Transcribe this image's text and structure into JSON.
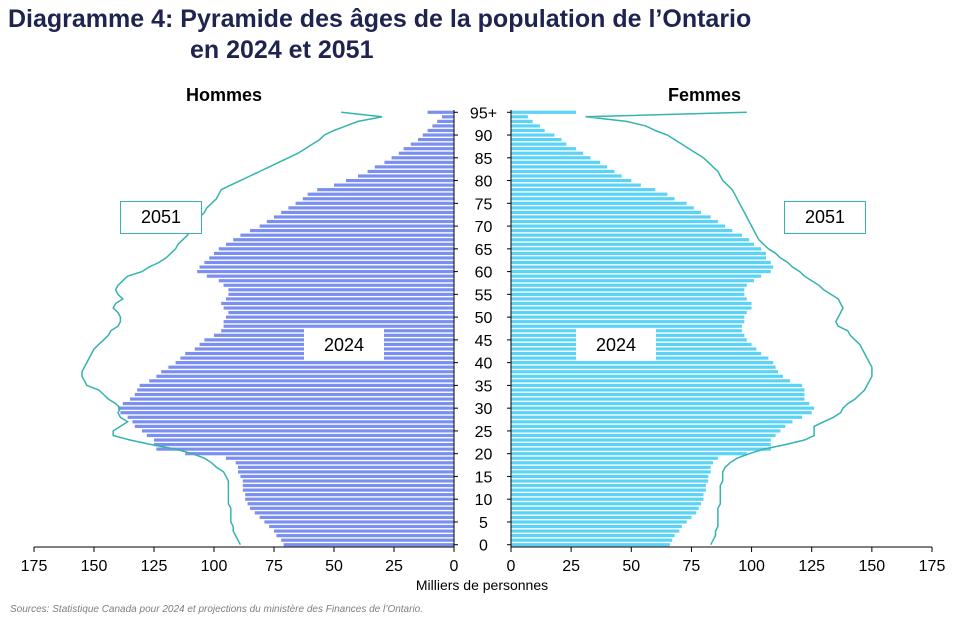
{
  "title": {
    "line1": "Diagramme 4: Pyramide des âges de la population de l’Ontario",
    "line2": "en 2024 et 2051"
  },
  "labels": {
    "men": "Hommes",
    "women": "Femmes",
    "year_2051": "2051",
    "year_2024": "2024",
    "xlabel": "Milliers de personnes",
    "source": "Sources: Statistique Canada pour 2024 et projections du ministère des Finances de l’Ontario."
  },
  "colors": {
    "men_bar": "#7b8ff0",
    "women_bar": "#5bd3f7",
    "line_2051": "#35b3ad",
    "title": "#1f2350"
  },
  "chart_data": {
    "type": "bar",
    "orientation": "horizontal-pyramid",
    "title": "Diagramme 4: Pyramide des âges de la population de l’Ontario en 2024 et 2051",
    "xlabel": "Milliers de personnes",
    "xlim": [
      0,
      175
    ],
    "x_ticks": [
      175,
      150,
      125,
      100,
      75,
      50,
      25,
      0
    ],
    "age_ticks": [
      "0",
      "5",
      "10",
      "15",
      "20",
      "25",
      "30",
      "35",
      "40",
      "45",
      "50",
      "55",
      "60",
      "65",
      "70",
      "75",
      "80",
      "85",
      "90",
      "95+"
    ],
    "ages": [
      0,
      1,
      2,
      3,
      4,
      5,
      6,
      7,
      8,
      9,
      10,
      11,
      12,
      13,
      14,
      15,
      16,
      17,
      18,
      19,
      20,
      21,
      22,
      23,
      24,
      25,
      26,
      27,
      28,
      29,
      30,
      31,
      32,
      33,
      34,
      35,
      36,
      37,
      38,
      39,
      40,
      41,
      42,
      43,
      44,
      45,
      46,
      47,
      48,
      49,
      50,
      51,
      52,
      53,
      54,
      55,
      56,
      57,
      58,
      59,
      60,
      61,
      62,
      63,
      64,
      65,
      66,
      67,
      68,
      69,
      70,
      71,
      72,
      73,
      74,
      75,
      76,
      77,
      78,
      79,
      80,
      81,
      82,
      83,
      84,
      85,
      86,
      87,
      88,
      89,
      90,
      91,
      92,
      93,
      94,
      95
    ],
    "series": [
      {
        "name": "Hommes 2024",
        "values": [
          71,
          72,
          74,
          75,
          77,
          79,
          81,
          83,
          85,
          86,
          87,
          87,
          88,
          88,
          88,
          89,
          90,
          90,
          91,
          95,
          112,
          124,
          125,
          125,
          128,
          130,
          133,
          134,
          136,
          139,
          140,
          138,
          135,
          133,
          132,
          131,
          127,
          124,
          122,
          119,
          116,
          114,
          112,
          108,
          106,
          104,
          100,
          97,
          96,
          96,
          95,
          94,
          96,
          97,
          95,
          94,
          94,
          96,
          98,
          103,
          107,
          106,
          104,
          102,
          100,
          98,
          95,
          92,
          89,
          85,
          81,
          78,
          75,
          72,
          69,
          66,
          63,
          61,
          57,
          50,
          45,
          40,
          36,
          33,
          29,
          26,
          23,
          21,
          18,
          15,
          13,
          11,
          9,
          7,
          5,
          11
        ]
      },
      {
        "name": "Femmes 2024",
        "values": [
          66,
          67,
          68,
          70,
          71,
          73,
          75,
          77,
          78,
          79,
          80,
          80,
          81,
          81,
          82,
          82,
          83,
          83,
          84,
          86,
          98,
          108,
          108,
          108,
          110,
          112,
          114,
          117,
          121,
          125,
          126,
          124,
          122,
          122,
          122,
          121,
          116,
          113,
          111,
          110,
          109,
          107,
          104,
          102,
          100,
          98,
          97,
          96,
          96,
          97,
          97,
          98,
          100,
          100,
          98,
          97,
          97,
          98,
          101,
          104,
          108,
          109,
          108,
          106,
          106,
          104,
          101,
          99,
          96,
          92,
          89,
          86,
          83,
          79,
          76,
          73,
          68,
          65,
          60,
          54,
          50,
          46,
          43,
          40,
          37,
          33,
          30,
          27,
          23,
          21,
          18,
          14,
          12,
          9,
          7,
          27
        ]
      },
      {
        "name": "Hommes 2051",
        "values": [
          89,
          90,
          91,
          92,
          92,
          93,
          93,
          93,
          93,
          94,
          94,
          94,
          94,
          94,
          94,
          95,
          96,
          99,
          101,
          104,
          109,
          116,
          126,
          135,
          142,
          142,
          139,
          136,
          139,
          140,
          139,
          141,
          144,
          146,
          148,
          153,
          154,
          155,
          155,
          154,
          153,
          152,
          151,
          150,
          148,
          146,
          144,
          143,
          140,
          139,
          139,
          140,
          142,
          141,
          138,
          140,
          141,
          140,
          138,
          136,
          130,
          127,
          123,
          120,
          118,
          116,
          115,
          113,
          111,
          110,
          109,
          107,
          106,
          104,
          103,
          101,
          99,
          98,
          97,
          93,
          89,
          85,
          81,
          77,
          73,
          69,
          65,
          62,
          59,
          56,
          54,
          50,
          45,
          40,
          30,
          47
        ]
      },
      {
        "name": "Femmes 2051",
        "values": [
          83,
          84,
          85,
          85,
          86,
          86,
          86,
          86,
          86,
          87,
          87,
          87,
          87,
          87,
          88,
          88,
          88,
          89,
          91,
          94,
          99,
          105,
          114,
          122,
          126,
          126,
          126,
          130,
          134,
          137,
          138,
          140,
          143,
          145,
          147,
          148,
          149,
          150,
          150,
          150,
          149,
          148,
          147,
          146,
          145,
          143,
          141,
          140,
          136,
          135,
          136,
          137,
          138,
          137,
          136,
          133,
          130,
          128,
          125,
          122,
          120,
          117,
          115,
          112,
          110,
          107,
          105,
          103,
          102,
          101,
          100,
          99,
          98,
          97,
          96,
          95,
          94,
          93,
          92,
          90,
          88,
          87,
          86,
          84,
          82,
          80,
          77,
          74,
          71,
          68,
          65,
          60,
          56,
          48,
          31,
          98
        ]
      }
    ],
    "annotations": [
      "2051",
      "2051",
      "2024",
      "2024"
    ],
    "legend": "none",
    "grid": false
  }
}
